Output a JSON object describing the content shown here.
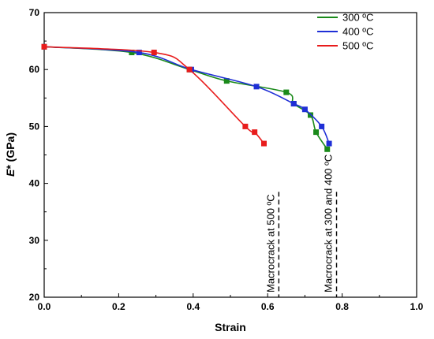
{
  "chart_data": {
    "type": "scatter",
    "title": "",
    "xlabel": "Strain",
    "ylabel_italic": "E",
    "ylabel_rest": "* (GPa)",
    "xlim": [
      0.0,
      1.0
    ],
    "ylim": [
      20,
      70
    ],
    "x_ticks": [
      "0.0",
      "0.2",
      "0.4",
      "0.6",
      "0.8",
      "1.0"
    ],
    "y_ticks": [
      "20",
      "30",
      "40",
      "50",
      "60",
      "70"
    ],
    "grid": false,
    "legend_position": "top-right",
    "series": [
      {
        "name": "300 ºC",
        "color": "#1a8a1a",
        "points": [
          [
            0.0,
            64
          ],
          [
            0.235,
            63
          ],
          [
            0.39,
            60
          ],
          [
            0.49,
            58
          ],
          [
            0.65,
            56
          ],
          [
            0.67,
            54
          ],
          [
            0.715,
            52
          ],
          [
            0.73,
            49
          ],
          [
            0.76,
            46
          ]
        ]
      },
      {
        "name": "400 ºC",
        "color": "#1f2fd6",
        "points": [
          [
            0.0,
            64
          ],
          [
            0.255,
            63
          ],
          [
            0.395,
            60
          ],
          [
            0.57,
            57
          ],
          [
            0.67,
            54
          ],
          [
            0.7,
            53
          ],
          [
            0.745,
            50
          ],
          [
            0.765,
            47
          ]
        ]
      },
      {
        "name": "500 ºC",
        "color": "#e81c1c",
        "points": [
          [
            0.0,
            64
          ],
          [
            0.295,
            63
          ],
          [
            0.39,
            60
          ],
          [
            0.54,
            50
          ],
          [
            0.565,
            49
          ],
          [
            0.59,
            47
          ]
        ]
      }
    ],
    "vlines": [
      {
        "x": 0.63,
        "label": "Macrocrack at 500 ºC"
      },
      {
        "x": 0.785,
        "label": "Macrocrack at 300 and 400 ºC"
      }
    ]
  }
}
